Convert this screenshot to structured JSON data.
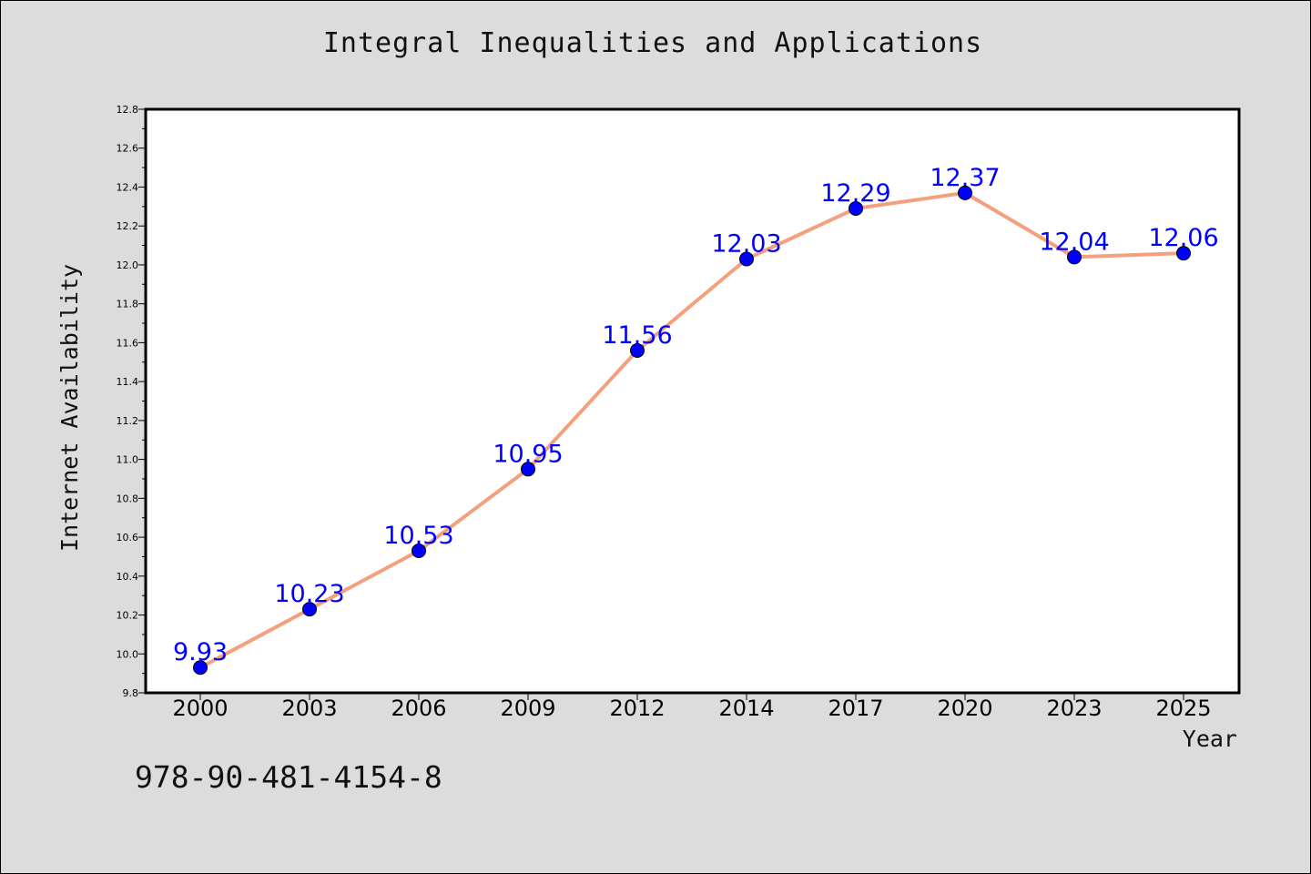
{
  "chart_data": {
    "type": "line",
    "title": "Integral Inequalities and Applications",
    "xlabel": "Year",
    "ylabel": "Internet Availability",
    "categories": [
      "2000",
      "2003",
      "2006",
      "2009",
      "2012",
      "2014",
      "2017",
      "2020",
      "2023",
      "2025"
    ],
    "series": [
      {
        "values": [
          9.93,
          10.23,
          10.53,
          10.95,
          11.56,
          12.03,
          12.29,
          12.37,
          12.04,
          12.06
        ],
        "line_color": "#f4a07e",
        "marker_color": "#0000ff",
        "data_labels": [
          "9.93",
          "10.23",
          "10.53",
          "10.95",
          "11.56",
          "12.03",
          "12.29",
          "12.37",
          "12.04",
          "12.06"
        ]
      }
    ],
    "ylim": [
      9.8,
      12.8
    ],
    "yticks": [
      "9.8",
      "10.0",
      "10.2",
      "10.4",
      "10.6",
      "10.8",
      "11.0",
      "11.2",
      "11.4",
      "11.6",
      "11.8",
      "12.0",
      "12.2",
      "12.4",
      "12.6",
      "12.8"
    ],
    "grid": false,
    "legend": "none"
  },
  "footer": {
    "isbn": "978-90-481-4154-8"
  },
  "colors": {
    "background": "#dcdcdc",
    "plot_background": "#ffffff",
    "line": "#f4a07e",
    "marker": "#0000ff",
    "data_label": "#0000ff"
  }
}
